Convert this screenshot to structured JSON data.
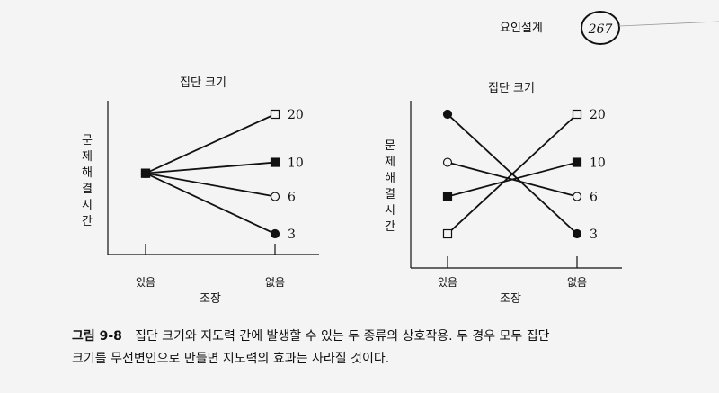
{
  "header": {
    "running_title": "요인설계",
    "page_number": "267"
  },
  "caption": {
    "label": "그림 9-8",
    "text_line1": "집단 크기와 지도력 간에 발생할 수 있는 두 종류의 상호작용. 두 경우 모두 집단",
    "text_line2": "크기를 무선변인으로 만들면 지도력의 효과는 사라질 것이다."
  },
  "colors": {
    "ink": "#111111",
    "paper": "#f4f4f4"
  },
  "chart_data": [
    {
      "type": "line",
      "title": "집단 크기",
      "xlabel": "조장",
      "ylabel": "문제해결시간",
      "categories": [
        "있음",
        "없음"
      ],
      "series": [
        {
          "name": "20",
          "marker": "open-square",
          "values": [
            5,
            8.8
          ]
        },
        {
          "name": "10",
          "marker": "filled-square",
          "values": [
            5,
            5.7
          ]
        },
        {
          "name": "6",
          "marker": "open-circle",
          "values": [
            5,
            3.5
          ]
        },
        {
          "name": "3",
          "marker": "filled-circle",
          "values": [
            5,
            1.1
          ]
        }
      ],
      "ylim": [
        0,
        10
      ],
      "grid": false
    },
    {
      "type": "line",
      "title": "집단 크기",
      "xlabel": "조장",
      "ylabel": "문제해결시간",
      "categories": [
        "있음",
        "없음"
      ],
      "series": [
        {
          "name": "20",
          "marker": "open-square",
          "values": [
            1.1,
            8.8
          ]
        },
        {
          "name": "10",
          "marker": "filled-square",
          "values": [
            3.5,
            5.7
          ]
        },
        {
          "name": "6",
          "marker": "open-circle",
          "values": [
            5.7,
            3.5
          ]
        },
        {
          "name": "3",
          "marker": "filled-circle",
          "values": [
            8.8,
            1.1
          ]
        }
      ],
      "ylim": [
        0,
        10
      ],
      "grid": false
    }
  ]
}
